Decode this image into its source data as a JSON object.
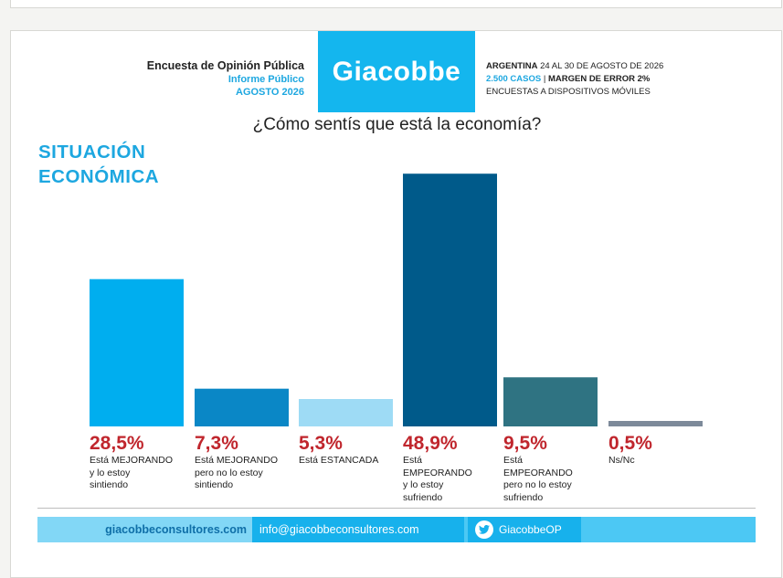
{
  "header": {
    "survey_title": "Encuesta de Opinión Pública",
    "report_type": "Informe Público",
    "period": "AGOSTO 2026",
    "brand": "Giacobbe",
    "country": "ARGENTINA",
    "dates": "24 AL 30 DE AGOSTO DE 2026",
    "cases": "2.500 CASOS",
    "separator": "|",
    "margin": "MARGEN DE ERROR 2%",
    "method": "ENCUESTAS A DISPOSITIVOS MÓVILES"
  },
  "section_title_line1": "SITUACIÓN",
  "section_title_line2": "ECONÓMICA",
  "chart_data": {
    "type": "bar",
    "title": "¿Cómo sentís que está la economía?",
    "categories": [
      "Está MEJORANDO y lo estoy sintiendo",
      "Está MEJORANDO pero no lo estoy sintiendo",
      "Está ESTANCADA",
      "Está EMPEORANDO y lo estoy sufriendo",
      "Está EMPEORANDO pero no lo estoy sufriendo",
      "Ns/Nc"
    ],
    "category_lines": [
      [
        "Está MEJORANDO",
        "y lo estoy",
        "sintiendo"
      ],
      [
        "Está MEJORANDO",
        "pero no lo estoy",
        "sintiendo"
      ],
      [
        "Está ESTANCADA"
      ],
      [
        "Está",
        "EMPEORANDO",
        "y lo estoy",
        "sufriendo"
      ],
      [
        "Está",
        "EMPEORANDO",
        "pero no lo estoy",
        "sufriendo"
      ],
      [
        "Ns/Nc"
      ]
    ],
    "values": [
      28.5,
      7.3,
      5.3,
      48.9,
      9.5,
      0.5
    ],
    "value_labels": [
      "28,5%",
      "7,3%",
      "5,3%",
      "48,9%",
      "9,5%",
      "0,5%"
    ],
    "colors": [
      "#00aeef",
      "#0a87c6",
      "#9edbf5",
      "#005a8a",
      "#2f7382",
      "#7d8a9a"
    ],
    "ylim": [
      0,
      50
    ],
    "grid": false,
    "legend": "none"
  },
  "footer": {
    "website": "giacobbeconsultores.com",
    "email": "info@giacobbeconsultores.com",
    "twitter": "GiacobbeOP"
  }
}
